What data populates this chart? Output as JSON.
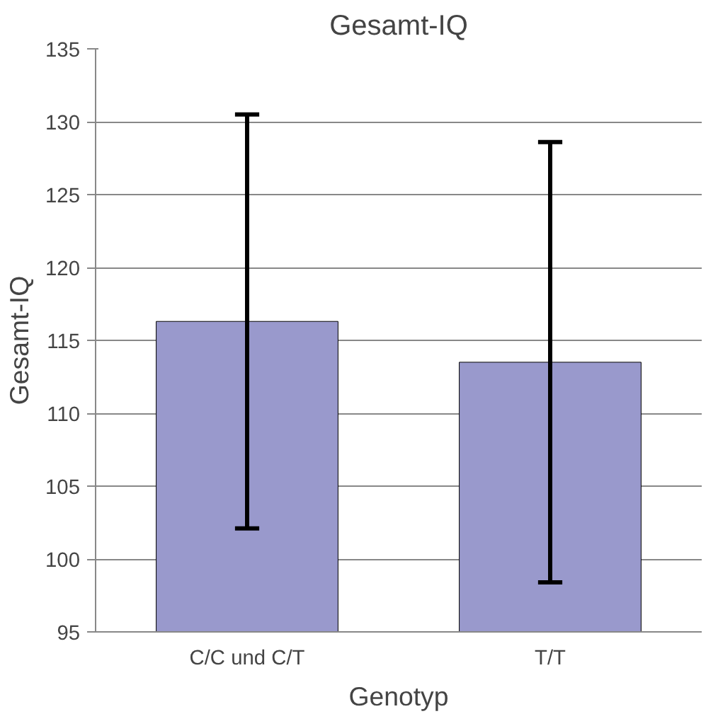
{
  "chart_data": {
    "type": "bar",
    "title": "Gesamt-IQ",
    "xlabel": "Genotyp",
    "ylabel": "Gesamt-IQ",
    "categories": [
      "C/C und C/T",
      "T/T"
    ],
    "values": [
      116.3,
      113.5
    ],
    "errors": [
      14.2,
      15.1
    ],
    "color": "#9999cc",
    "ylim": [
      95,
      135
    ],
    "yticks": [
      95,
      100,
      105,
      110,
      115,
      120,
      125,
      130,
      135
    ],
    "grid": "y"
  }
}
